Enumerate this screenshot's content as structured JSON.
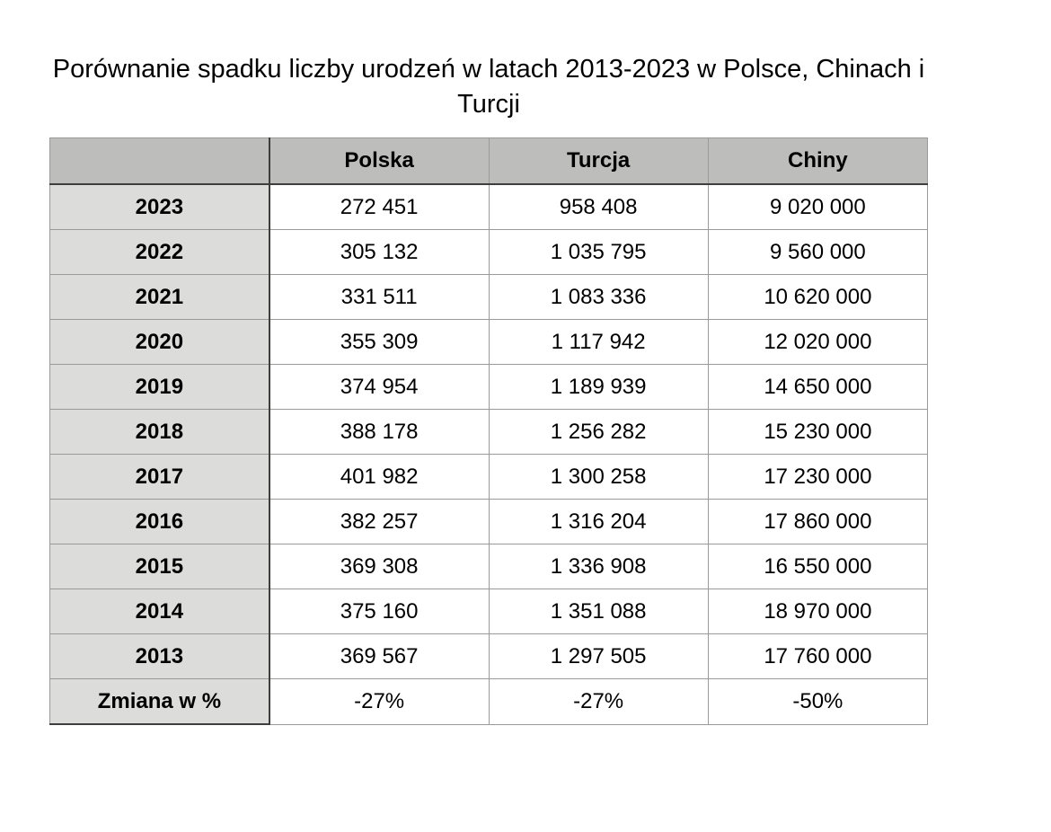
{
  "title": "Porównanie spadku liczby urodzeń w latach 2013-2023 w Polsce, Chinach i Turcji",
  "table": {
    "columns": [
      "",
      "Polska",
      "Turcja",
      "Chiny"
    ],
    "rows": [
      {
        "label": "2023",
        "values": [
          "272 451",
          "958 408",
          "9 020 000"
        ]
      },
      {
        "label": "2022",
        "values": [
          "305 132",
          "1 035 795",
          "9 560 000"
        ]
      },
      {
        "label": "2021",
        "values": [
          "331 511",
          "1 083 336",
          "10 620 000"
        ]
      },
      {
        "label": "2020",
        "values": [
          "355 309",
          "1 117 942",
          "12 020 000"
        ]
      },
      {
        "label": "2019",
        "values": [
          "374 954",
          "1 189 939",
          "14 650 000"
        ]
      },
      {
        "label": "2018",
        "values": [
          "388 178",
          "1 256 282",
          "15 230 000"
        ]
      },
      {
        "label": "2017",
        "values": [
          "401 982",
          "1 300 258",
          "17 230 000"
        ]
      },
      {
        "label": "2016",
        "values": [
          "382 257",
          "1 316 204",
          "17 860 000"
        ]
      },
      {
        "label": "2015",
        "values": [
          "369 308",
          "1 336 908",
          "16 550 000"
        ]
      },
      {
        "label": "2014",
        "values": [
          "375 160",
          "1 351 088",
          "18 970 000"
        ]
      },
      {
        "label": "2013",
        "values": [
          "369 567",
          "1 297 505",
          "17 760 000"
        ]
      },
      {
        "label": "Zmiana w %",
        "values": [
          "-27%",
          "-27%",
          "-50%"
        ]
      }
    ]
  },
  "colors": {
    "header_bg": "#bdbebc",
    "label_col_bg": "#dcdddb",
    "border_light": "#9a9a9a",
    "border_dark": "#3e3e3e",
    "text": "#000000"
  },
  "chart_data": {
    "type": "table",
    "title": "Porównanie spadku liczby urodzeń w latach 2013-2023 w Polsce, Chinach i Turcji",
    "categories": [
      "2023",
      "2022",
      "2021",
      "2020",
      "2019",
      "2018",
      "2017",
      "2016",
      "2015",
      "2014",
      "2013"
    ],
    "series": [
      {
        "name": "Polska",
        "values": [
          272451,
          305132,
          331511,
          355309,
          374954,
          388178,
          401982,
          382257,
          369308,
          375160,
          369567
        ],
        "change_row_label": "Zmiana w %",
        "change_pct": "-27%"
      },
      {
        "name": "Turcja",
        "values": [
          958408,
          1035795,
          1083336,
          1117942,
          1189939,
          1256282,
          1300258,
          1316204,
          1336908,
          1351088,
          1297505
        ],
        "change_row_label": "Zmiana w %",
        "change_pct": "-27%"
      },
      {
        "name": "Chiny",
        "values": [
          9020000,
          9560000,
          10620000,
          12020000,
          14650000,
          15230000,
          17230000,
          17860000,
          16550000,
          18970000,
          17760000
        ],
        "change_row_label": "Zmiana w %",
        "change_pct": "-50%"
      }
    ]
  }
}
